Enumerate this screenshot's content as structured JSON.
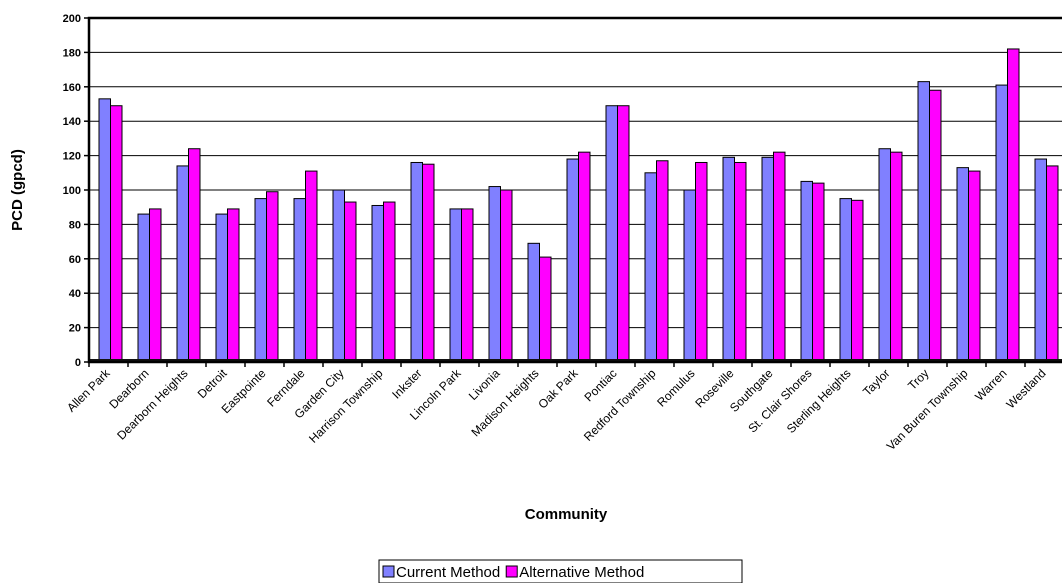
{
  "chart_data": {
    "type": "bar",
    "title": "",
    "xlabel": "Community",
    "ylabel": "PCD (gpcd)",
    "ylim": [
      0,
      200
    ],
    "yticks": [
      0,
      20,
      40,
      60,
      80,
      100,
      120,
      140,
      160,
      180,
      200
    ],
    "grid": true,
    "legend_position": "bottom-center",
    "categories": [
      "Allen Park",
      "Dearborn",
      "Dearborn Heights",
      "Detroit",
      "Eastpointe",
      "Ferndale",
      "Garden City",
      "Harrison Township",
      "Inkster",
      "Lincoln Park",
      "Livonia",
      "Madison Heights",
      "Oak Park",
      "Pontiac",
      "Redford Township",
      "Romulus",
      "Roseville",
      "Southgate",
      "St. Clair Shores",
      "Sterling Heights",
      "Taylor",
      "Troy",
      "Van Buren Township",
      "Warren",
      "Westland"
    ],
    "series": [
      {
        "name": "Current Method",
        "color": "#8080ff",
        "values": [
          153,
          86,
          114,
          86,
          95,
          95,
          100,
          91,
          116,
          89,
          102,
          69,
          118,
          149,
          110,
          100,
          119,
          119,
          105,
          95,
          124,
          163,
          113,
          161,
          118
        ]
      },
      {
        "name": "Alternative Method",
        "color": "#ff00ff",
        "values": [
          149,
          89,
          124,
          89,
          99,
          111,
          93,
          93,
          115,
          89,
          100,
          61,
          122,
          149,
          117,
          116,
          116,
          122,
          104,
          94,
          122,
          158,
          111,
          182,
          114
        ]
      }
    ]
  }
}
